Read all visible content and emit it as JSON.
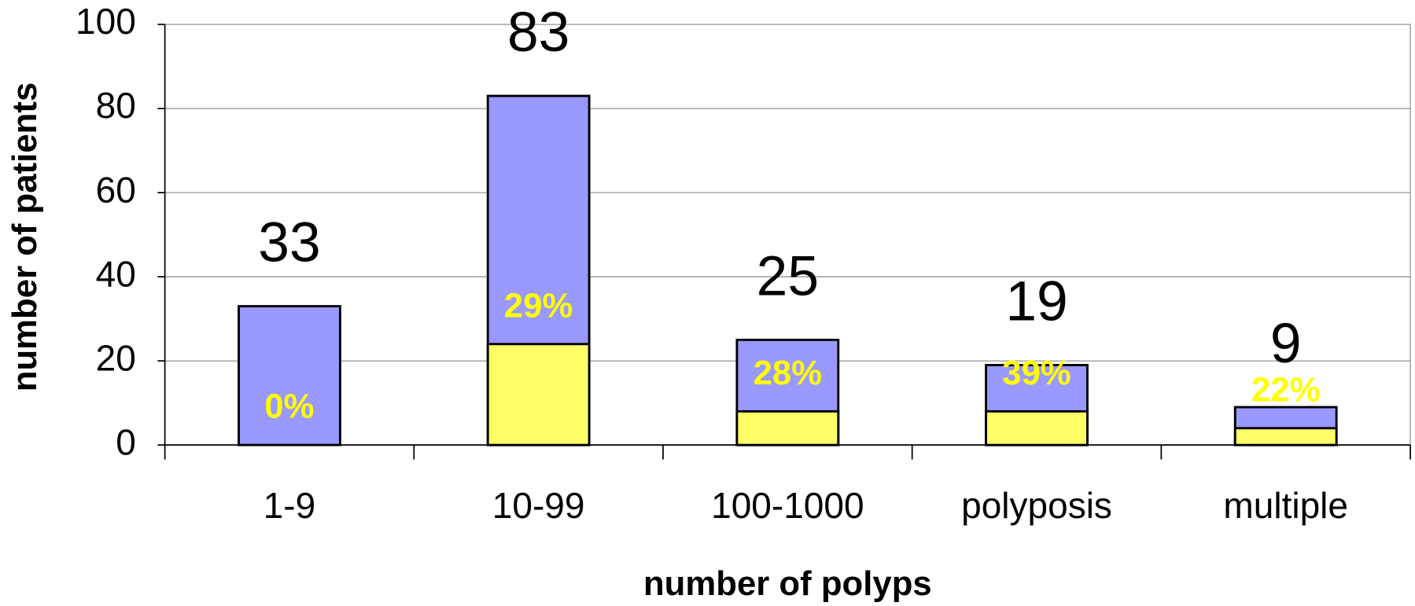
{
  "chart_data": {
    "type": "bar",
    "x_label": "number of polyps",
    "y_label": "number of patients",
    "categories": [
      "1-9",
      "10-99",
      "100-1000",
      "polyposis",
      "multiple"
    ],
    "series": [
      {
        "color": "#9999ff",
        "values": [
          33,
          83,
          25,
          19,
          9
        ]
      },
      {
        "color": "#ffff66",
        "values": [
          0,
          24,
          8,
          8,
          4
        ]
      }
    ],
    "annotations": [
      "0%",
      "29%",
      "28%",
      "39%",
      "22%"
    ],
    "annotation_color": "#ffff00",
    "ylim": [
      0,
      100
    ],
    "yticks": [
      0,
      20,
      40,
      60,
      80,
      100
    ],
    "grid": true
  }
}
